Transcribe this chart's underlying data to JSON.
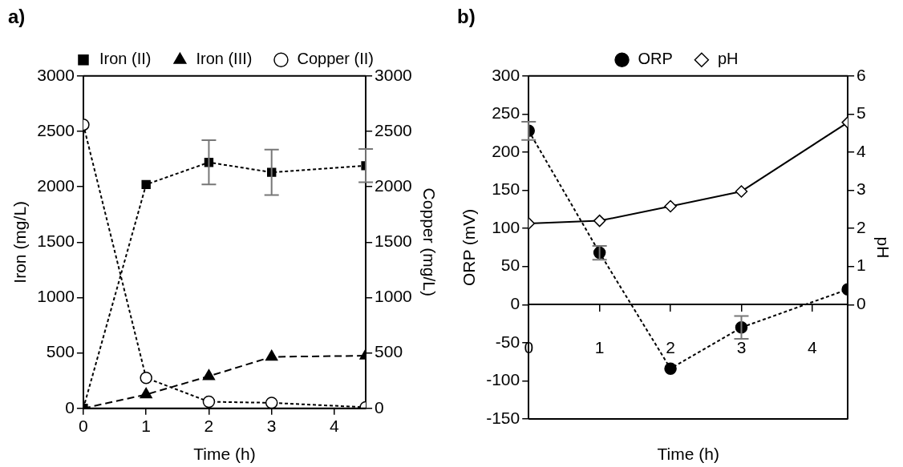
{
  "chart_data": [
    {
      "type": "line",
      "title": "a)",
      "xlabel": "Time (h)",
      "ylabel": "Iron (mg/L)",
      "y2label": "Copper (mg/L)",
      "x": [
        0,
        1,
        2,
        3,
        4.5
      ],
      "xlim": [
        0,
        4.5
      ],
      "xticks": [
        0,
        1,
        2,
        3,
        4
      ],
      "ylim": [
        0,
        3000
      ],
      "yticks": [
        0,
        500,
        1000,
        1500,
        2000,
        2500,
        3000
      ],
      "y2lim": [
        0,
        3000
      ],
      "y2ticks": [
        0,
        500,
        1000,
        1500,
        2000,
        2500,
        3000
      ],
      "legend": "top",
      "grid": false,
      "series": [
        {
          "name": "Iron (II)",
          "color": "#000000",
          "marker": "square",
          "line_style": "dotted",
          "values": [
            0,
            2020,
            2220,
            2130,
            2190
          ],
          "errors": [
            null,
            null,
            200,
            205,
            150
          ]
        },
        {
          "name": "Iron (III)",
          "color": "#000000",
          "marker": "triangle",
          "line_style": "dashed",
          "values": [
            0,
            125,
            290,
            465,
            475
          ]
        },
        {
          "name": "Copper (II)",
          "color": "#ffffff",
          "marker": "circle",
          "line_style": "dotted",
          "axis": "y2",
          "values": [
            2560,
            275,
            60,
            50,
            10
          ]
        }
      ]
    },
    {
      "type": "line",
      "title": "b)",
      "xlabel": "Time (h)",
      "ylabel": "ORP (mV)",
      "y2label": "pH",
      "x": [
        0,
        1,
        2,
        3,
        4.5
      ],
      "xlim": [
        0,
        4.5
      ],
      "xticks": [
        0,
        1,
        2,
        3,
        4
      ],
      "ylim": [
        -150,
        300
      ],
      "yticks": [
        -150,
        -100,
        -50,
        0,
        50,
        100,
        150,
        200,
        250,
        300
      ],
      "y2lim": [
        -3,
        6
      ],
      "y2ticks": [
        0,
        1,
        2,
        3,
        4,
        5,
        6
      ],
      "legend": "top",
      "grid": false,
      "series": [
        {
          "name": "ORP",
          "color": "#000000",
          "marker": "circle",
          "line_style": "dotted",
          "values": [
            228,
            68,
            -84,
            -30,
            20
          ],
          "errors": [
            12,
            9,
            null,
            15,
            null
          ]
        },
        {
          "name": "pH",
          "color": "#ffffff",
          "marker": "diamond",
          "line_style": "solid",
          "axis": "y2",
          "values": [
            2.13,
            2.2,
            2.58,
            2.97,
            4.78
          ]
        }
      ]
    }
  ]
}
